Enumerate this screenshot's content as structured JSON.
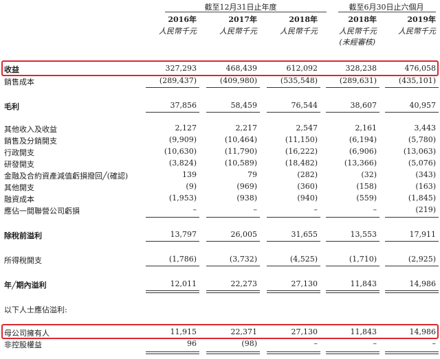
{
  "header": {
    "group_full_year": "截至12月31日止年度",
    "group_six_months": "截至6月30日止六個月",
    "years": [
      "2016年",
      "2017年",
      "2018年",
      "2018年",
      "2019年"
    ],
    "unit": "人民幣千元",
    "unaudited_note": "(未經審核)"
  },
  "rows": [
    {
      "label": "收益",
      "values": [
        "327,293",
        "468,439",
        "612,092",
        "328,238",
        "476,058"
      ]
    },
    {
      "label": "銷售成本",
      "values": [
        "(289,437)",
        "(409,980)",
        "(535,548)",
        "(289,631)",
        "(435,101)"
      ]
    },
    {
      "label": "毛利",
      "values": [
        "37,856",
        "58,459",
        "76,544",
        "38,607",
        "40,957"
      ]
    },
    {
      "label": "其他收入及收益",
      "values": [
        "2,127",
        "2,217",
        "2,547",
        "2,161",
        "3,443"
      ]
    },
    {
      "label": "銷售及分銷開支",
      "values": [
        "(9,909)",
        "(10,464)",
        "(11,150)",
        "(6,194)",
        "(5,780)"
      ]
    },
    {
      "label": "行政開支",
      "values": [
        "(10,630)",
        "(11,790)",
        "(16,222)",
        "(6,906)",
        "(13,063)"
      ]
    },
    {
      "label": "研發開支",
      "values": [
        "(3,824)",
        "(10,589)",
        "(18,482)",
        "(13,366)",
        "(5,076)"
      ]
    },
    {
      "label": "金融及合約資產減值虧損撥回╱(確認)",
      "values": [
        "139",
        "79",
        "(282)",
        "(32)",
        "(343)"
      ]
    },
    {
      "label": "其他開支",
      "values": [
        "(9)",
        "(969)",
        "(360)",
        "(158)",
        "(163)"
      ]
    },
    {
      "label": "融資成本",
      "values": [
        "(1,953)",
        "(938)",
        "(940)",
        "(559)",
        "(1,845)"
      ]
    },
    {
      "label": "應佔一間聯營公司虧損",
      "values": [
        "–",
        "–",
        "–",
        "–",
        "(219)"
      ]
    },
    {
      "label": "除稅前溢利",
      "values": [
        "13,797",
        "26,005",
        "31,655",
        "13,553",
        "17,911"
      ]
    },
    {
      "label": "所得稅開支",
      "values": [
        "(1,786)",
        "(3,732)",
        "(4,525)",
        "(1,710)",
        "(2,925)"
      ]
    },
    {
      "label": "年╱期內溢利",
      "values": [
        "12,011",
        "22,273",
        "27,130",
        "11,843",
        "14,986"
      ]
    },
    {
      "label": "以下人士應佔溢利:",
      "values": [
        "",
        "",
        "",
        "",
        ""
      ]
    },
    {
      "label": "母公司擁有人",
      "values": [
        "11,915",
        "22,371",
        "27,130",
        "11,843",
        "14,986"
      ]
    },
    {
      "label": "非控股權益",
      "values": [
        "96",
        "(98)",
        "–",
        "–",
        "–"
      ]
    }
  ],
  "colors": {
    "highlight": "#d9282f"
  }
}
